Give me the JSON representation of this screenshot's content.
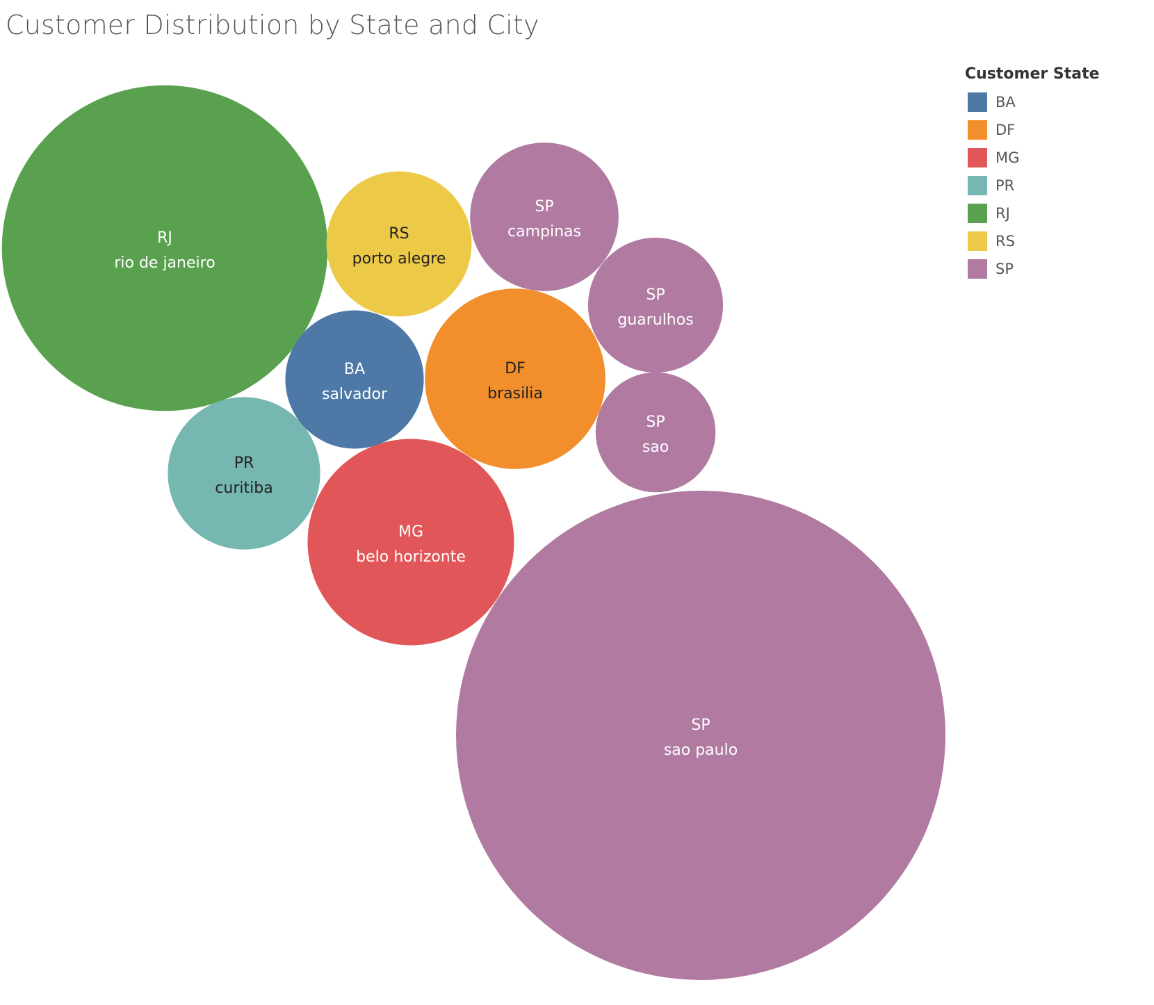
{
  "title": "Customer Distribution by State and City",
  "legend": {
    "title": "Customer State",
    "items": [
      {
        "label": "BA",
        "color": "#4e79a7"
      },
      {
        "label": "DF",
        "color": "#f28e2b"
      },
      {
        "label": "MG",
        "color": "#e15759"
      },
      {
        "label": "PR",
        "color": "#76b7b2"
      },
      {
        "label": "RJ",
        "color": "#59a14f"
      },
      {
        "label": "RS",
        "color": "#edc948"
      },
      {
        "label": "SP",
        "color": "#b07aa1"
      }
    ]
  },
  "chart_data": {
    "type": "bubble",
    "title": "Customer Distribution by State and City",
    "size_encoding": "customer count (relative)",
    "color_encoding": "Customer State",
    "bubbles": [
      {
        "state": "SP",
        "city": "sao paulo",
        "value": 1000
      },
      {
        "state": "RJ",
        "city": "rio de janeiro",
        "value": 443
      },
      {
        "state": "MG",
        "city": "belo horizonte",
        "value": 178
      },
      {
        "state": "DF",
        "city": "brasilia",
        "value": 136
      },
      {
        "state": "PR",
        "city": "curitiba",
        "value": 97
      },
      {
        "state": "SP",
        "city": "campinas",
        "value": 92
      },
      {
        "state": "RS",
        "city": "porto alegre",
        "value": 88
      },
      {
        "state": "BA",
        "city": "salvador",
        "value": 80
      },
      {
        "state": "SP",
        "city": "guarulhos",
        "value": 76
      },
      {
        "state": "SP",
        "city": "sao",
        "value": 60
      }
    ]
  }
}
